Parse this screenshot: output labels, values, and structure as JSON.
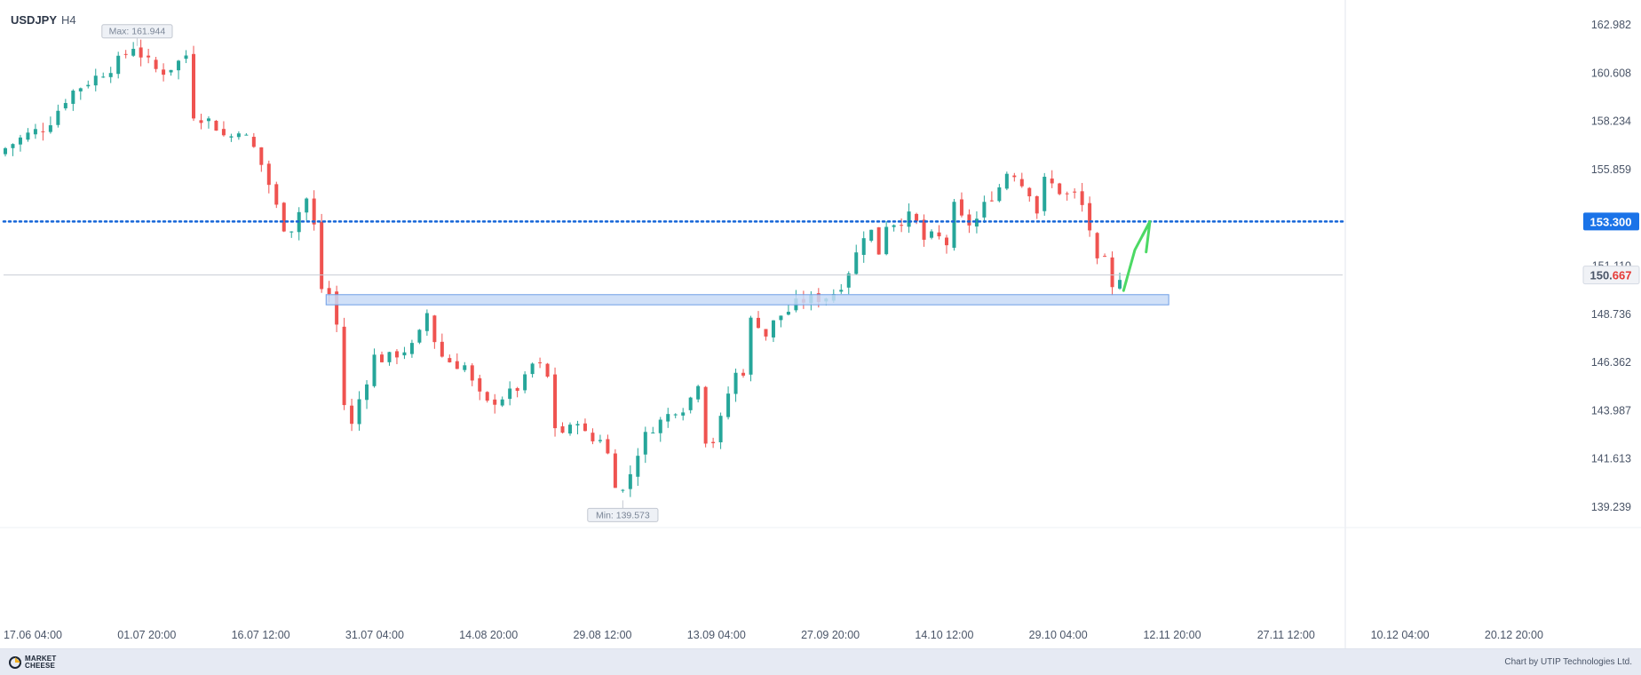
{
  "header": {
    "symbol": "USDJPY",
    "timeframe": "H4"
  },
  "colors": {
    "bull": "#26a69a",
    "bear": "#ef5350",
    "level_line": "#1565d8",
    "zone_fill": "#c8dbf7",
    "zone_stroke": "#6f9ee6",
    "arrow": "#4cd964",
    "current_price_text": "#e53935",
    "badge_bg": "#1a73e8"
  },
  "chart_data": {
    "type": "candlestick",
    "symbol": "USDJPY",
    "timeframe": "H4",
    "ylim": [
      138.2,
      163.9
    ],
    "y_ticks": [
      162.982,
      160.608,
      158.234,
      155.859,
      151.11,
      148.736,
      146.362,
      143.987,
      141.613,
      139.239
    ],
    "y_tick_labels": [
      "162.982",
      "160.608",
      "158.234",
      "155.859",
      "151.110",
      "148.736",
      "146.362",
      "143.987",
      "141.613",
      "139.239"
    ],
    "x_tick_labels": [
      "17.06 04:00",
      "01.07 20:00",
      "16.07 12:00",
      "31.07 04:00",
      "14.08 20:00",
      "29.08 12:00",
      "13.09 04:00",
      "27.09 20:00",
      "14.10 12:00",
      "29.10 04:00",
      "12.11 20:00",
      "27.11 12:00",
      "10.12 04:00",
      "20.12 20:00"
    ],
    "price_path": [
      [
        0,
        156.8
      ],
      [
        3,
        157.5
      ],
      [
        6,
        158.0
      ],
      [
        9,
        159.6
      ],
      [
        12,
        160.3
      ],
      [
        15,
        161.0
      ],
      [
        17.5,
        161.944
      ],
      [
        19,
        161.3
      ],
      [
        21,
        160.6
      ],
      [
        23,
        161.0
      ],
      [
        24.8,
        161.6
      ],
      [
        25.5,
        158.6
      ],
      [
        28,
        158.2
      ],
      [
        30,
        157.3
      ],
      [
        31.5,
        157.9
      ],
      [
        33.5,
        156.9
      ],
      [
        35,
        155.7
      ],
      [
        36.5,
        154.0
      ],
      [
        38,
        152.6
      ],
      [
        39.5,
        153.8
      ],
      [
        40.8,
        154.6
      ],
      [
        41.8,
        152.4
      ],
      [
        42.5,
        150.0
      ],
      [
        44,
        149.6
      ],
      [
        45,
        146.8
      ],
      [
        46,
        141.8
      ],
      [
        47,
        144.7
      ],
      [
        48,
        144.4
      ],
      [
        49,
        146.7
      ],
      [
        51,
        146.5
      ],
      [
        53,
        146.9
      ],
      [
        55,
        147.2
      ],
      [
        56.5,
        148.8
      ],
      [
        58,
        146.8
      ],
      [
        60,
        146.3
      ],
      [
        61.5,
        146.2
      ],
      [
        63,
        144.9
      ],
      [
        64.5,
        144.3
      ],
      [
        66,
        144.6
      ],
      [
        68,
        144.9
      ],
      [
        69.5,
        145.5
      ],
      [
        70.8,
        146.5
      ],
      [
        72.5,
        145.6
      ],
      [
        73.5,
        143.2
      ],
      [
        75,
        142.8
      ],
      [
        76.5,
        143.6
      ],
      [
        78,
        142.4
      ],
      [
        79.5,
        142.7
      ],
      [
        81,
        141.4
      ],
      [
        82,
        139.573
      ],
      [
        83.5,
        140.9
      ],
      [
        85,
        142.5
      ],
      [
        86.5,
        143.2
      ],
      [
        88,
        143.6
      ],
      [
        89.5,
        144.1
      ],
      [
        91,
        144.2
      ],
      [
        92.8,
        145.7
      ],
      [
        93.5,
        142.6
      ],
      [
        94.5,
        142.5
      ],
      [
        96,
        144.0
      ],
      [
        97,
        145.7
      ],
      [
        98.8,
        146.0
      ],
      [
        99.5,
        148.4
      ],
      [
        100.5,
        148.3
      ],
      [
        101.5,
        147.7
      ],
      [
        103,
        148.6
      ],
      [
        104.5,
        148.9
      ],
      [
        106,
        149.4
      ],
      [
        108,
        149.5
      ],
      [
        109.5,
        149.6
      ],
      [
        111,
        149.9
      ],
      [
        112.5,
        150.9
      ],
      [
        114,
        152.1
      ],
      [
        115,
        153.3
      ],
      [
        116.5,
        151.8
      ],
      [
        117.5,
        153.2
      ],
      [
        119,
        153.3
      ],
      [
        121,
        153.6
      ],
      [
        122.5,
        152.4
      ],
      [
        124,
        152.6
      ],
      [
        125.5,
        152.2
      ],
      [
        126.5,
        154.0
      ],
      [
        128,
        153.1
      ],
      [
        129.5,
        153.4
      ],
      [
        131,
        154.4
      ],
      [
        132.5,
        155.0
      ],
      [
        134,
        156.1
      ],
      [
        135,
        155.3
      ],
      [
        136.5,
        154.8
      ],
      [
        137.5,
        153.8
      ],
      [
        138.5,
        155.3
      ],
      [
        140,
        155.0
      ],
      [
        141,
        154.6
      ],
      [
        142.5,
        154.6
      ],
      [
        144,
        153.8
      ],
      [
        144.8,
        152.4
      ],
      [
        145.5,
        151.2
      ],
      [
        146.5,
        151.3
      ],
      [
        147.5,
        149.9
      ],
      [
        148.2,
        150.667
      ]
    ],
    "horizontal_level": {
      "value": 153.3,
      "style": "dotted"
    },
    "current_price": 150.667,
    "current_price_label": {
      "prefix": "150.",
      "suffix": "667"
    },
    "support_zone": {
      "from": 149.2,
      "to": 149.7,
      "x_start": 42.6,
      "x_end": 154.5
    },
    "max_marker": {
      "text": "Max: 161.944",
      "value": 161.944,
      "x": 17.5
    },
    "min_marker": {
      "text": "Min: 139.573",
      "value": 139.573,
      "x": 82
    },
    "forecast_arrow": [
      [
        148.5,
        149.9
      ],
      [
        150,
        151.9
      ],
      [
        151,
        152.6
      ],
      [
        152,
        153.3
      ],
      [
        151.5,
        151.8
      ]
    ]
  },
  "footer": {
    "logo_line1": "MARKET",
    "logo_line2": "CHEESE",
    "credit": "Chart by UTIP Technologies Ltd."
  }
}
